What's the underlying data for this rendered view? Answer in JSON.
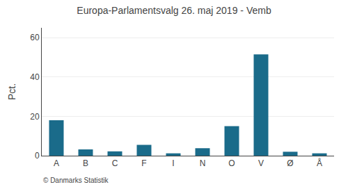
{
  "chart_data": {
    "type": "bar",
    "title": "Europa-Parlamentsvalg 26. maj 2019 - Vemb",
    "categories": [
      "A",
      "B",
      "C",
      "F",
      "I",
      "N",
      "O",
      "V",
      "Ø",
      "Å"
    ],
    "values": [
      18.0,
      3.2,
      2.2,
      5.5,
      1.2,
      3.8,
      15.0,
      51.5,
      2.0,
      1.2
    ],
    "color": "#1a6b8a",
    "ylabel": "Pct.",
    "ylim": [
      0,
      65
    ],
    "yticks": [
      0,
      20,
      40,
      60
    ],
    "grid": true,
    "annotations": [
      "© Danmarks Statistik"
    ]
  }
}
